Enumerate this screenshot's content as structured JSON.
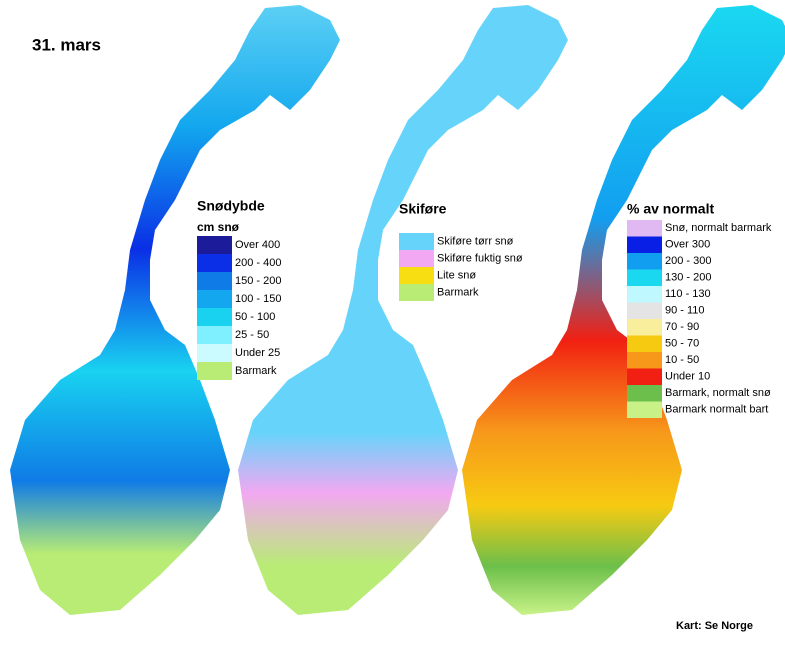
{
  "title": "31. mars",
  "maps": [
    {
      "title": "Snødybde",
      "subtitle": "cm snø",
      "legend": [
        {
          "label": "Over 400",
          "color": "#1c1c9a"
        },
        {
          "label": "200 - 400",
          "color": "#0a2fe6"
        },
        {
          "label": "150 - 200",
          "color": "#0f7be6"
        },
        {
          "label": "100 - 150",
          "color": "#12a7ee"
        },
        {
          "label": "50 - 100",
          "color": "#19d2f0"
        },
        {
          "label": "25 - 50",
          "color": "#7ff0ff"
        },
        {
          "label": "Under 25",
          "color": "#ccfbff"
        },
        {
          "label": "Barmark",
          "color": "#b8ec74"
        }
      ]
    },
    {
      "title": "Skiføre",
      "legend": [
        {
          "label": "Skiføre tørr snø",
          "color": "#66d4fa"
        },
        {
          "label": "Skiføre fuktig snø",
          "color": "#f2a8f2"
        },
        {
          "label": "Lite snø",
          "color": "#f7de12"
        },
        {
          "label": "Barmark",
          "color": "#b8ec74"
        }
      ]
    },
    {
      "title": "% av normalt",
      "legend": [
        {
          "label": "Snø, normalt barmark",
          "color": "#e0b8f2"
        },
        {
          "label": "Over 300",
          "color": "#0a1fe6"
        },
        {
          "label": "200 - 300",
          "color": "#129ef0"
        },
        {
          "label": "130 - 200",
          "color": "#1ad8f0"
        },
        {
          "label": "110 - 130",
          "color": "#bff8ff"
        },
        {
          "label": "90 - 110",
          "color": "#e4e4e4"
        },
        {
          "label": "70 - 90",
          "color": "#f9ee9c"
        },
        {
          "label": "50 - 70",
          "color": "#f7ca12"
        },
        {
          "label": "10 - 50",
          "color": "#f7981a"
        },
        {
          "label": "Under 10",
          "color": "#f22012"
        },
        {
          "label": "Barmark, normalt snø",
          "color": "#6cbf4a"
        },
        {
          "label": "Barmark normalt bart",
          "color": "#c8f288"
        }
      ]
    }
  ],
  "credit": "Kart: Se Norge"
}
